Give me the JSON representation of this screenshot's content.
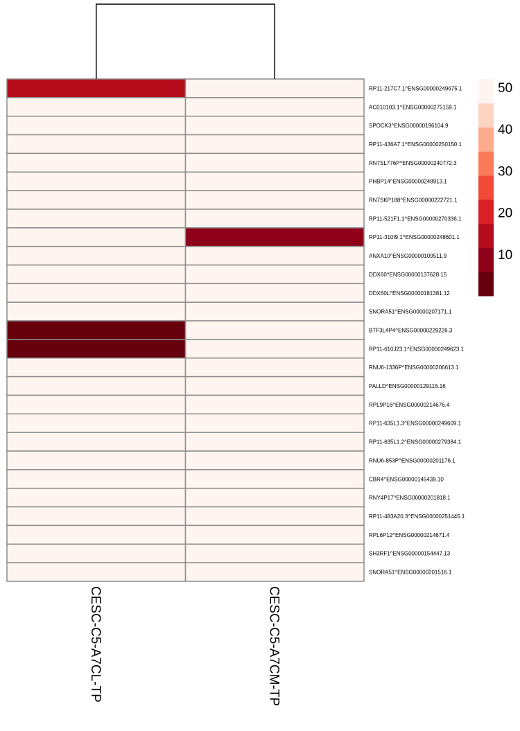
{
  "chart_data": {
    "type": "heatmap",
    "columns": [
      "CESC-C5-A7CL-TP",
      "CESC-C5-A7CM-TP"
    ],
    "rows": [
      "RP11-217C7.1^ENSG00000249675.1",
      "AC010103.1^ENSG00000275159.1",
      "SPOCK3^ENSG00000196104.9",
      "RP11-436A7.1^ENSG00000250150.1",
      "RN7SL776P^ENSG00000240772.3",
      "PHBP14^ENSG00000248913.1",
      "RN7SKP188^ENSG00000222721.1",
      "RP11-521F1.1^ENSG00000270336.1",
      "RP11-310I9.1^ENSG00000248601.1",
      "ANXA10^ENSG00000109511.9",
      "DDX60^ENSG00000137628.15",
      "DDX60L^ENSG00000181381.12",
      "SNORA51^ENSG00000207171.1",
      "BTF3L4P4^ENSG00000229226.3",
      "RP11-610J23.1^ENSG00000249623.1",
      "RNU6-1336P^ENSG00000206613.1",
      "PALLD^ENSG00000129116.16",
      "RPL9P16^ENSG00000214676.4",
      "RP11-635L1.3^ENSG00000249609.1",
      "RP11-635L1.2^ENSG00000279384.1",
      "RNU6-853P^ENSG00000201176.1",
      "CBR4^ENSG00000145439.10",
      "RNY4P17^ENSG00000201818.1",
      "RP11-483A20.3^ENSG00000251445.1",
      "RPL6P12^ENSG00000214671.4",
      "SH3RF1^ENSG00000154447.13",
      "SNORA51^ENSG00000201516.1"
    ],
    "values": [
      [
        13,
        52
      ],
      [
        52,
        52
      ],
      [
        52,
        52
      ],
      [
        52,
        52
      ],
      [
        52,
        52
      ],
      [
        52,
        52
      ],
      [
        52,
        52
      ],
      [
        52,
        52
      ],
      [
        52,
        8
      ],
      [
        52,
        52
      ],
      [
        52,
        52
      ],
      [
        52,
        52
      ],
      [
        52,
        52
      ],
      [
        2,
        52
      ],
      [
        2,
        52
      ],
      [
        52,
        52
      ],
      [
        52,
        52
      ],
      [
        52,
        52
      ],
      [
        52,
        52
      ],
      [
        52,
        52
      ],
      [
        52,
        52
      ],
      [
        52,
        52
      ],
      [
        52,
        52
      ],
      [
        52,
        52
      ],
      [
        52,
        52
      ],
      [
        52,
        52
      ],
      [
        52,
        52
      ]
    ],
    "legend": {
      "ticks": [
        10,
        20,
        30,
        40,
        50
      ],
      "range": [
        0,
        52
      ],
      "colors": [
        "#67000d",
        "#8f0019",
        "#b50c1c",
        "#d92027",
        "#f24a37",
        "#fb7a5a",
        "#fcab8f",
        "#fdd3c1",
        "#fff5f0"
      ],
      "placement": "right"
    },
    "dendrogram": "columns",
    "cell_border_color": "#8c8c8c"
  }
}
